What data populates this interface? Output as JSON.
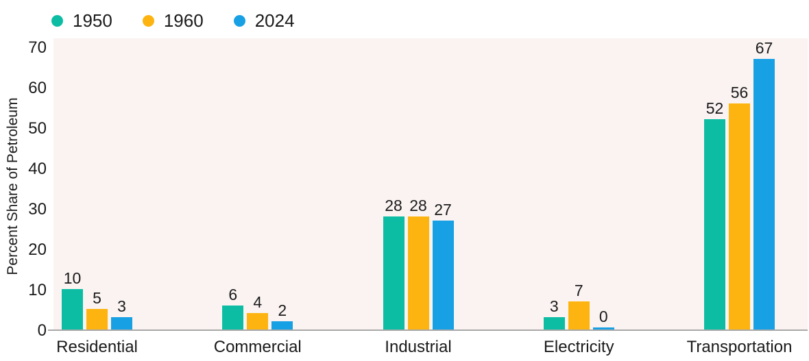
{
  "chart_data": {
    "type": "bar",
    "title": "",
    "xlabel": "",
    "ylabel": "Percent Share of Petroleum",
    "categories": [
      "Residential",
      "Commercial",
      "Industrial",
      "Electricity",
      "Transportation"
    ],
    "series": [
      {
        "name": "1950",
        "color": "#0dbda3",
        "values": [
          10,
          6,
          28,
          3,
          52
        ]
      },
      {
        "name": "1960",
        "color": "#fdb411",
        "values": [
          5,
          4,
          28,
          7,
          56
        ]
      },
      {
        "name": "2024",
        "color": "#18a0e4",
        "values": [
          3,
          2,
          27,
          0,
          67
        ]
      }
    ],
    "ylim": [
      0,
      70
    ],
    "yticks": [
      0,
      10,
      20,
      30,
      40,
      50,
      60,
      70
    ],
    "grid": false,
    "legend_position": "top-left",
    "colors": {
      "plot_background": "#faf3f2",
      "page_background": "#ffffff",
      "axis_line": "#a8a8a8",
      "text": "#1a1a1a"
    }
  }
}
